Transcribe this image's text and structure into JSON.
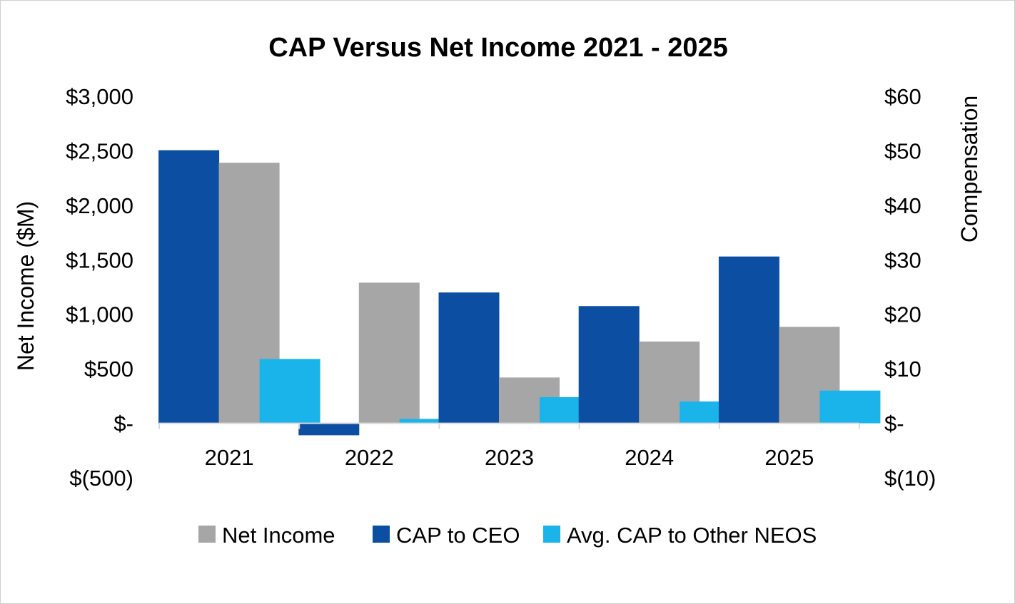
{
  "chart_data": {
    "type": "bar",
    "title": "CAP Versus Net Income 2021 - 2025",
    "categories": [
      "2021",
      "2022",
      "2023",
      "2024",
      "2025"
    ],
    "ylabel_left": "Net Income ($M)",
    "ylabel_right": "Compensation",
    "ylim_left": [
      -500,
      3000
    ],
    "ylim_right": [
      -10,
      60
    ],
    "yticks_left": [
      "$(500)",
      "$-",
      "$500",
      "$1,000",
      "$1,500",
      "$2,000",
      "$2,500",
      "$3,000"
    ],
    "yticks_right": [
      "$(10)",
      "$-",
      "$10",
      "$20",
      "$30",
      "$40",
      "$50",
      "$60"
    ],
    "legend_position": "bottom",
    "grid": false,
    "series": [
      {
        "name": "Net Income",
        "axis": "left",
        "color": "#a6a6a6",
        "values": [
          2390,
          1290,
          420,
          750,
          885
        ]
      },
      {
        "name": "CAP to CEO",
        "axis": "right",
        "color": "#0b4ea2",
        "values": [
          50.1,
          -2.2,
          24.0,
          21.5,
          30.6
        ]
      },
      {
        "name": "Avg. CAP to Other NEOS",
        "axis": "right",
        "color": "#1ab4ea",
        "values": [
          11.8,
          0.8,
          4.8,
          4.0,
          6.0
        ]
      }
    ]
  }
}
